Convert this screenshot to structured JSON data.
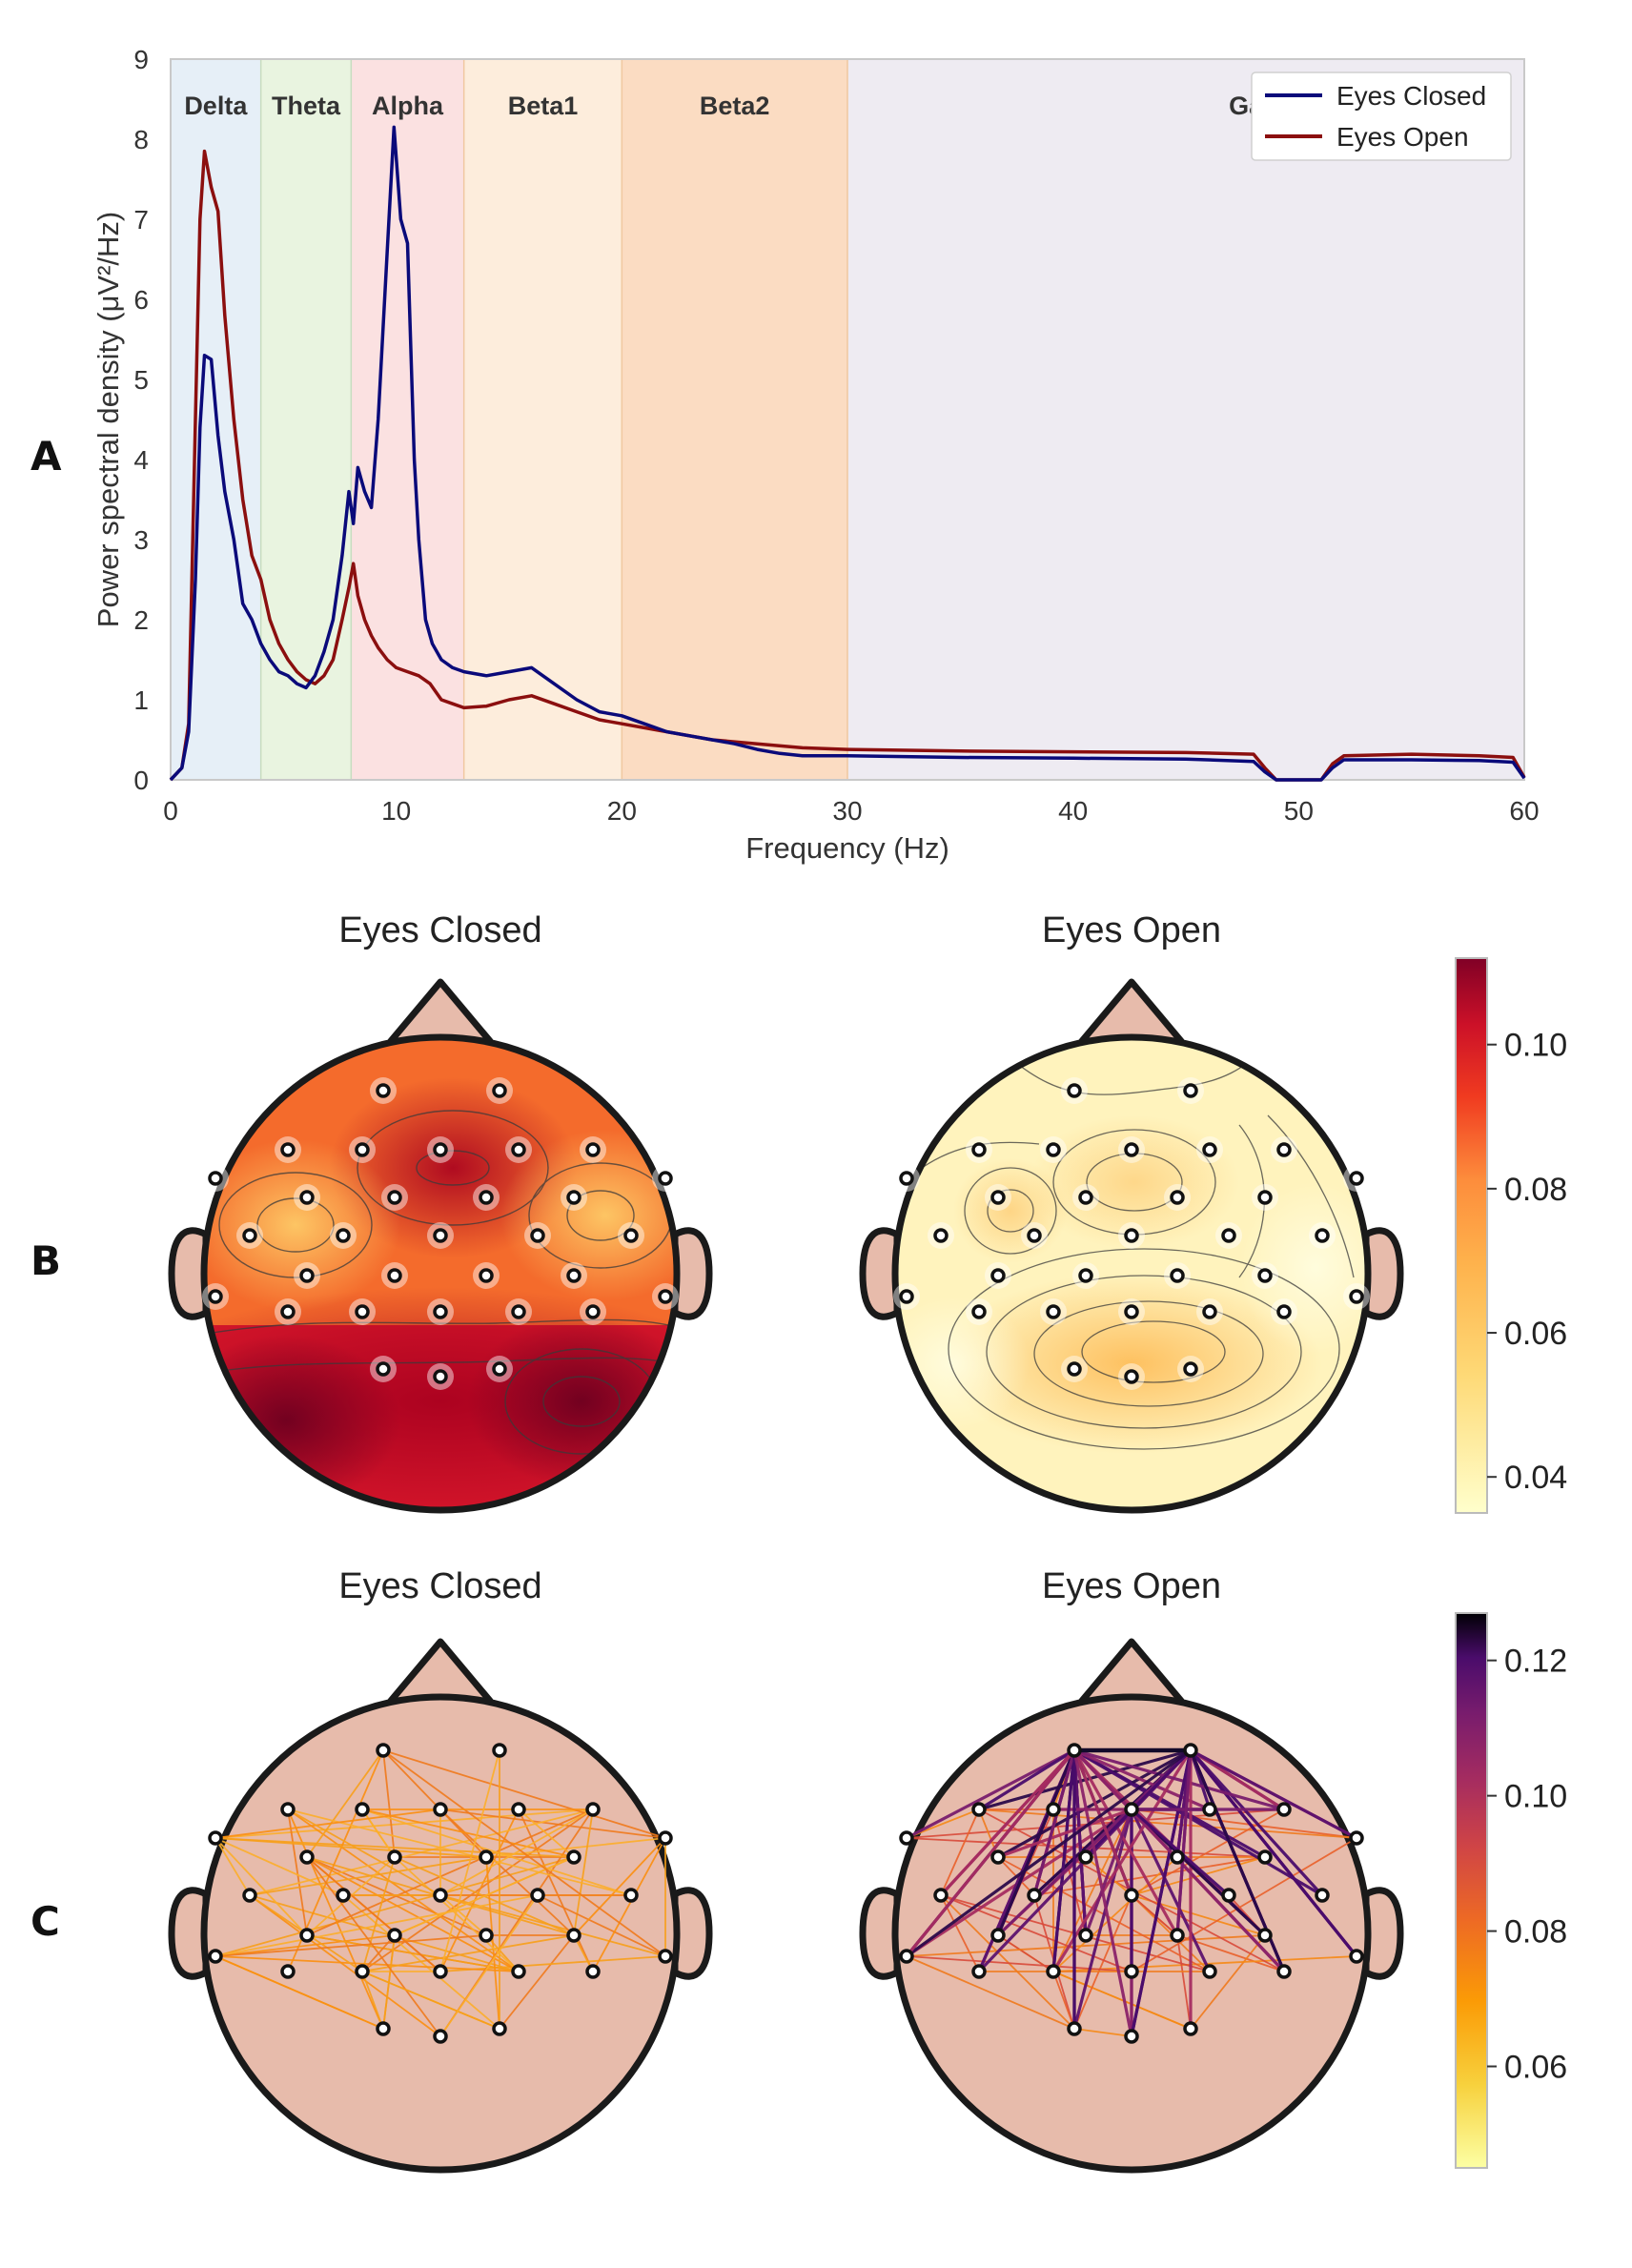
{
  "chart_data": [
    {
      "type": "line",
      "panel": "A",
      "xlabel": "Frequency (Hz)",
      "ylabel": "Power spectral density (μV²/Hz)",
      "xlim": [
        0,
        60
      ],
      "ylim": [
        0,
        9
      ],
      "xticks": [
        0,
        10,
        20,
        30,
        40,
        50,
        60
      ],
      "yticks": [
        0,
        1,
        2,
        3,
        4,
        5,
        6,
        7,
        8,
        9
      ],
      "legend_position": "top-right",
      "grid": false,
      "bands": [
        {
          "name": "Delta",
          "range": [
            0,
            4
          ],
          "color": "#e6eff7"
        },
        {
          "name": "Theta",
          "range": [
            4,
            8
          ],
          "color": "#e9f4e0"
        },
        {
          "name": "Alpha",
          "range": [
            8,
            13
          ],
          "color": "#fbe1e1"
        },
        {
          "name": "Beta1",
          "range": [
            13,
            20
          ],
          "color": "#fdeddc"
        },
        {
          "name": "Beta2",
          "range": [
            20,
            30
          ],
          "color": "#fbdcc2"
        },
        {
          "name": "Gamma",
          "range": [
            30,
            60
          ],
          "color": "#eeebf2"
        }
      ],
      "series": [
        {
          "name": "Eyes Closed",
          "color": "#0a0a7a",
          "x": [
            0,
            0.5,
            0.8,
            1.1,
            1.3,
            1.5,
            1.8,
            2.1,
            2.4,
            2.8,
            3.2,
            3.6,
            4.0,
            4.4,
            4.8,
            5.2,
            5.6,
            6.0,
            6.4,
            6.8,
            7.2,
            7.6,
            7.9,
            8.1,
            8.3,
            8.6,
            8.9,
            9.2,
            9.6,
            9.9,
            10.2,
            10.5,
            10.8,
            11.0,
            11.3,
            11.6,
            12.0,
            12.5,
            13.0,
            14.0,
            15.0,
            16.0,
            17.0,
            18.0,
            19.0,
            20.0,
            21.0,
            22.0,
            23.0,
            24.0,
            25.0,
            26.0,
            27.0,
            28.0,
            30.0,
            35.0,
            40.0,
            45.0,
            48.0,
            48.5,
            49.0,
            51.0,
            51.5,
            52.0,
            55.0,
            58.0,
            59.5,
            60.0
          ],
          "values": [
            0,
            0.15,
            0.6,
            2.5,
            4.4,
            5.3,
            5.25,
            4.3,
            3.6,
            3.0,
            2.2,
            2.0,
            1.7,
            1.5,
            1.35,
            1.3,
            1.2,
            1.15,
            1.3,
            1.6,
            2.0,
            2.8,
            3.6,
            3.2,
            3.9,
            3.6,
            3.4,
            4.5,
            6.6,
            8.15,
            7.0,
            6.7,
            4.0,
            3.0,
            2.0,
            1.7,
            1.5,
            1.4,
            1.35,
            1.3,
            1.35,
            1.4,
            1.2,
            1.0,
            0.85,
            0.8,
            0.7,
            0.6,
            0.55,
            0.5,
            0.45,
            0.38,
            0.33,
            0.3,
            0.3,
            0.28,
            0.27,
            0.26,
            0.23,
            0.1,
            0.0,
            0.0,
            0.15,
            0.25,
            0.25,
            0.24,
            0.22,
            0.02
          ]
        },
        {
          "name": "Eyes Open",
          "color": "#8b0f0f",
          "x": [
            0,
            0.5,
            0.8,
            1.1,
            1.3,
            1.5,
            1.8,
            2.1,
            2.4,
            2.8,
            3.2,
            3.6,
            4.0,
            4.4,
            4.8,
            5.2,
            5.6,
            6.0,
            6.4,
            6.8,
            7.2,
            7.6,
            7.9,
            8.1,
            8.3,
            8.6,
            8.9,
            9.2,
            9.6,
            10.0,
            10.5,
            11.0,
            11.5,
            12.0,
            12.5,
            13.0,
            14.0,
            15.0,
            16.0,
            17.0,
            18.0,
            19.0,
            20.0,
            22.0,
            24.0,
            26.0,
            28.0,
            30.0,
            35.0,
            40.0,
            45.0,
            48.0,
            48.5,
            49.0,
            51.0,
            51.5,
            52.0,
            55.0,
            58.0,
            59.5,
            60.0
          ],
          "values": [
            0,
            0.15,
            0.7,
            4.5,
            7.0,
            7.85,
            7.4,
            7.1,
            5.8,
            4.5,
            3.5,
            2.8,
            2.5,
            2.0,
            1.7,
            1.5,
            1.35,
            1.25,
            1.2,
            1.3,
            1.5,
            2.0,
            2.4,
            2.7,
            2.3,
            2.0,
            1.8,
            1.65,
            1.5,
            1.4,
            1.35,
            1.3,
            1.2,
            1.0,
            0.95,
            0.9,
            0.92,
            1.0,
            1.05,
            0.95,
            0.85,
            0.75,
            0.7,
            0.6,
            0.5,
            0.45,
            0.4,
            0.38,
            0.36,
            0.35,
            0.34,
            0.32,
            0.15,
            0.0,
            0.0,
            0.2,
            0.3,
            0.32,
            0.3,
            0.28,
            0.03
          ]
        }
      ]
    },
    {
      "type": "heatmap",
      "panel": "B",
      "titles": [
        "Eyes Closed",
        "Eyes Open"
      ],
      "colormap": "YlOrRd",
      "colorbar": {
        "range": [
          0.035,
          0.112
        ],
        "ticks": [
          "0.10",
          "0.08",
          "0.06",
          "0.04"
        ],
        "tick_values": [
          0.1,
          0.08,
          0.06,
          0.04
        ]
      },
      "electrodes": 32
    },
    {
      "type": "heatmap",
      "panel": "C",
      "titles": [
        "Eyes Closed",
        "Eyes Open"
      ],
      "colormap": "inferno",
      "colorbar": {
        "range": [
          0.045,
          0.127
        ],
        "ticks": [
          "0.12",
          "0.10",
          "0.08",
          "0.06"
        ],
        "tick_values": [
          0.12,
          0.1,
          0.08,
          0.06
        ]
      },
      "electrodes": 32
    }
  ],
  "panels": {
    "a_letter": "A",
    "b_letter": "B",
    "c_letter": "C"
  },
  "legend": {
    "eyes_closed": "Eyes Closed",
    "eyes_open": "Eyes Open"
  },
  "head_titles": {
    "b_left": "Eyes Closed",
    "b_right": "Eyes Open",
    "c_left": "Eyes Closed",
    "c_right": "Eyes Open"
  },
  "colors": {
    "head_fill": "#e7bbab",
    "head_stroke": "#1a1a1a",
    "eyes_closed": "#0a0a7a",
    "eyes_open": "#8b0f0f"
  }
}
